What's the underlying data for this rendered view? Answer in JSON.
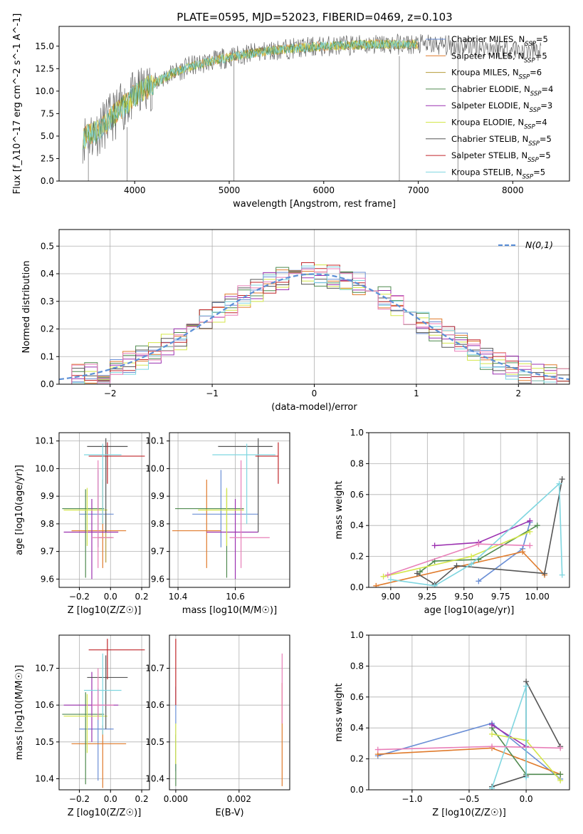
{
  "figure_title": "PLATE=0595, MJD=52023, FIBERID=0469, z=0.103",
  "colors": {
    "Chabrier MILES": "#6b8fd6",
    "Salpeter MILES": "#e07b2c",
    "Kroupa MILES": "#b59b3a",
    "Chabrier ELODIE": "#4f8a4f",
    "Salpeter ELODIE": "#9b30b0",
    "Kroupa ELODIE": "#d4e64a",
    "Chabrier STELIB": "#555555",
    "Salpeter STELIB": "#c0262a",
    "Kroupa STELIB": "#7fd6e0",
    "pink": "#e87fb8",
    "gaussian": "#5b8fd6"
  },
  "legend_names": [
    "Chabrier MILES",
    "Salpeter MILES",
    "Kroupa MILES",
    "Chabrier ELODIE",
    "Salpeter ELODIE",
    "Kroupa ELODIE",
    "Chabrier STELIB",
    "Salpeter STELIB",
    "Kroupa STELIB"
  ],
  "legend_nssp": [
    "5",
    "5",
    "6",
    "4",
    "3",
    "4",
    "5",
    "5",
    "5"
  ],
  "chart_data": [
    {
      "id": "spectrum",
      "type": "line",
      "xlabel": "wavelength [Angstrom, rest frame]",
      "ylabel": "Flux [f_λ10^-17 erg cm^-2 s^-1 A^-1]",
      "xlim": [
        3200,
        8600
      ],
      "ylim": [
        0,
        17.2
      ],
      "xticks": [
        4000,
        5000,
        6000,
        7000,
        8000
      ],
      "yticks": [
        0.0,
        2.5,
        5.0,
        7.5,
        10.0,
        12.5,
        15.0
      ],
      "legend": "upper right",
      "continuum": {
        "x": [
          3450,
          3600,
          3800,
          4000,
          4200,
          4400,
          4600,
          4800,
          5000,
          5300,
          5600,
          6000,
          6500,
          7000,
          7500,
          8000,
          8300
        ],
        "y": [
          4.8,
          5.5,
          7.5,
          9.5,
          10.8,
          12.0,
          12.8,
          13.3,
          13.8,
          14.3,
          14.7,
          15.0,
          15.2,
          15.2,
          15.0,
          14.7,
          14.4
        ]
      },
      "spikes": [
        {
          "x": 3510,
          "y0": 0,
          "y1": 3.6
        },
        {
          "x": 3920,
          "y0": 0,
          "y1": 6.0
        },
        {
          "x": 5050,
          "y0": 0,
          "y1": 14.0
        },
        {
          "x": 6800,
          "y0": 0,
          "y1": 13.9
        },
        {
          "x": 7420,
          "y0": 0,
          "y1": 14.6
        }
      ]
    },
    {
      "id": "residuals",
      "type": "histogram",
      "xlabel": "(data-model)/error",
      "ylabel": "Normed distribution",
      "xlim": [
        -2.5,
        2.5
      ],
      "ylim": [
        0,
        0.56
      ],
      "xticks": [
        -2,
        -1,
        0,
        1,
        2
      ],
      "yticks": [
        0.0,
        0.1,
        0.2,
        0.3,
        0.4,
        0.5
      ],
      "bin_width": 0.125,
      "legend_label": "N(0,1)",
      "grid": true
    },
    {
      "id": "age_vs_Z",
      "type": "errorbar",
      "xlabel": "Z [log10(Z/Z☉)]",
      "ylabel": "age [log10(age/yr)]",
      "xlim": [
        -0.33,
        0.25
      ],
      "ylim": [
        9.57,
        10.13
      ],
      "xticks": [
        -0.2,
        0.0,
        0.2
      ],
      "yticks": [
        9.6,
        9.7,
        9.8,
        9.9,
        10.0,
        10.1
      ],
      "points": [
        {
          "model": "Chabrier MILES",
          "x": -0.08,
          "y": 9.835,
          "xerr": [
            0.12,
            0.1
          ],
          "yerr": [
            0.12,
            0.16
          ]
        },
        {
          "model": "Salpeter MILES",
          "x": -0.05,
          "y": 9.775,
          "xerr": [
            0.2,
            0.15
          ],
          "yerr": [
            0.135,
            0.185
          ]
        },
        {
          "model": "Kroupa MILES",
          "x": -0.03,
          "y": 9.75,
          "xerr": [
            0.05,
            0.04
          ],
          "yerr": [
            0.09,
            0.09
          ]
        },
        {
          "model": "Chabrier ELODIE",
          "x": -0.16,
          "y": 9.855,
          "xerr": [
            0.15,
            0.12
          ],
          "yerr": [
            0.25,
            0.07
          ]
        },
        {
          "model": "Salpeter ELODIE",
          "x": -0.12,
          "y": 9.77,
          "xerr": [
            0.18,
            0.17
          ],
          "yerr": [
            0.17,
            0.12
          ]
        },
        {
          "model": "Kroupa ELODIE",
          "x": -0.15,
          "y": 9.85,
          "xerr": [
            0.15,
            0.13
          ],
          "yerr": [
            0.13,
            0.08
          ]
        },
        {
          "model": "Chabrier STELIB",
          "x": -0.03,
          "y": 10.08,
          "xerr": [
            0.12,
            0.14
          ],
          "yerr": [
            0.31,
            0.03
          ]
        },
        {
          "model": "Salpeter STELIB",
          "x": -0.02,
          "y": 10.045,
          "xerr": [
            0.12,
            0.24
          ],
          "yerr": [
            0.1,
            0.05
          ]
        },
        {
          "model": "Kroupa STELIB",
          "x": -0.05,
          "y": 10.05,
          "xerr": [
            0.12,
            0.12
          ],
          "yerr": [
            0.25,
            0.04
          ]
        },
        {
          "model": "pink",
          "x": -0.08,
          "y": 9.75,
          "xerr": [
            0.04,
            0.1
          ],
          "yerr": [
            0.11,
            0.28
          ]
        }
      ]
    },
    {
      "id": "age_vs_mass",
      "type": "errorbar",
      "xlabel": "mass [log10(M/M☉)]",
      "ylabel": "",
      "xlim": [
        10.37,
        10.79
      ],
      "ylim": [
        9.57,
        10.13
      ],
      "xticks": [
        10.4,
        10.6
      ],
      "yticks": [
        9.6,
        9.7,
        9.8,
        9.9,
        10.0,
        10.1
      ],
      "points": [
        {
          "model": "Chabrier MILES",
          "x": 10.55,
          "y": 9.835,
          "xerr": [
            0.1,
            0.13
          ],
          "yerr": [
            0.12,
            0.16
          ]
        },
        {
          "model": "Salpeter MILES",
          "x": 10.5,
          "y": 9.775,
          "xerr": [
            0.12,
            0.05
          ],
          "yerr": [
            0.135,
            0.185
          ]
        },
        {
          "model": "Chabrier ELODIE",
          "x": 10.57,
          "y": 9.855,
          "xerr": [
            0.18,
            0.06
          ],
          "yerr": [
            0.25,
            0.07
          ]
        },
        {
          "model": "Salpeter ELODIE",
          "x": 10.6,
          "y": 9.77,
          "xerr": [
            0.1,
            0.08
          ],
          "yerr": [
            0.17,
            0.12
          ]
        },
        {
          "model": "Kroupa ELODIE",
          "x": 10.57,
          "y": 9.85,
          "xerr": [
            0.1,
            0.06
          ],
          "yerr": [
            0.13,
            0.08
          ]
        },
        {
          "model": "Chabrier STELIB",
          "x": 10.68,
          "y": 10.08,
          "xerr": [
            0.14,
            0.05
          ],
          "yerr": [
            0.31,
            0.03
          ]
        },
        {
          "model": "Salpeter STELIB",
          "x": 10.75,
          "y": 10.045,
          "xerr": [
            0.08,
            0.0
          ],
          "yerr": [
            0.1,
            0.05
          ]
        },
        {
          "model": "Kroupa STELIB",
          "x": 10.64,
          "y": 10.05,
          "xerr": [
            0.12,
            0.1
          ],
          "yerr": [
            0.25,
            0.04
          ]
        },
        {
          "model": "pink",
          "x": 10.62,
          "y": 9.75,
          "xerr": [
            0.04,
            0.1
          ],
          "yerr": [
            0.11,
            0.28
          ]
        }
      ]
    },
    {
      "id": "massweight_vs_age",
      "type": "line",
      "xlabel": "age [log10(age/yr)]",
      "ylabel": "mass weight",
      "xlim": [
        8.85,
        10.22
      ],
      "ylim": [
        0,
        1.0
      ],
      "xticks": [
        9.0,
        9.25,
        9.5,
        9.75,
        10.0
      ],
      "yticks": [
        0.0,
        0.2,
        0.4,
        0.6,
        0.8,
        1.0
      ],
      "series": [
        {
          "model": "Chabrier MILES",
          "x": [
            9.6,
            9.9,
            9.95
          ],
          "y": [
            0.04,
            0.25,
            0.42
          ]
        },
        {
          "model": "Salpeter MILES",
          "x": [
            8.9,
            9.9,
            10.05
          ],
          "y": [
            0.01,
            0.23,
            0.08
          ]
        },
        {
          "model": "Chabrier ELODIE",
          "x": [
            9.2,
            9.3,
            9.6,
            10.0
          ],
          "y": [
            0.1,
            0.17,
            0.18,
            0.4
          ]
        },
        {
          "model": "Salpeter ELODIE",
          "x": [
            9.3,
            9.6,
            9.95
          ],
          "y": [
            0.27,
            0.29,
            0.43
          ]
        },
        {
          "model": "Kroupa ELODIE",
          "x": [
            8.95,
            9.55,
            9.95
          ],
          "y": [
            0.07,
            0.2,
            0.36
          ]
        },
        {
          "model": "Chabrier STELIB",
          "x": [
            9.18,
            9.3,
            9.45,
            10.05,
            10.17
          ],
          "y": [
            0.09,
            0.02,
            0.14,
            0.09,
            0.7
          ]
        },
        {
          "model": "Kroupa STELIB",
          "x": [
            9.0,
            9.3,
            9.55,
            10.15,
            10.17
          ],
          "y": [
            0.05,
            0.01,
            0.15,
            0.67,
            0.08
          ]
        },
        {
          "model": "pink",
          "x": [
            8.98,
            9.6,
            9.95
          ],
          "y": [
            0.08,
            0.28,
            0.27
          ]
        }
      ]
    },
    {
      "id": "mass_vs_Z",
      "type": "errorbar",
      "xlabel": "Z [log10(Z/Z☉)]",
      "ylabel": "mass [log10(M/M☉)]",
      "xlim": [
        -0.33,
        0.25
      ],
      "ylim": [
        10.37,
        10.79
      ],
      "xticks": [
        -0.2,
        0.0,
        0.2
      ],
      "yticks": [
        10.4,
        10.5,
        10.6,
        10.7
      ],
      "points": [
        {
          "model": "Chabrier MILES",
          "x": -0.08,
          "y": 10.535,
          "xerr": [
            0.12,
            0.1
          ],
          "yerr": [
            0.14,
            0.11
          ]
        },
        {
          "model": "Salpeter MILES",
          "x": -0.05,
          "y": 10.495,
          "xerr": [
            0.2,
            0.15
          ],
          "yerr": [
            0.12,
            0.05
          ]
        },
        {
          "model": "Chabrier ELODIE",
          "x": -0.16,
          "y": 10.575,
          "xerr": [
            0.15,
            0.12
          ],
          "yerr": [
            0.19,
            0.06
          ]
        },
        {
          "model": "Salpeter ELODIE",
          "x": -0.12,
          "y": 10.6,
          "xerr": [
            0.18,
            0.17
          ],
          "yerr": [
            0.1,
            0.09
          ]
        },
        {
          "model": "Kroupa ELODIE",
          "x": -0.15,
          "y": 10.57,
          "xerr": [
            0.15,
            0.13
          ],
          "yerr": [
            0.1,
            0.06
          ]
        },
        {
          "model": "Chabrier STELIB",
          "x": -0.03,
          "y": 10.675,
          "xerr": [
            0.12,
            0.14
          ],
          "yerr": [
            0.14,
            0.06
          ]
        },
        {
          "model": "Salpeter STELIB",
          "x": -0.02,
          "y": 10.75,
          "xerr": [
            0.12,
            0.24
          ],
          "yerr": [
            0.08,
            0.03
          ]
        },
        {
          "model": "Kroupa STELIB",
          "x": -0.05,
          "y": 10.64,
          "xerr": [
            0.12,
            0.12
          ],
          "yerr": [
            0.12,
            0.1
          ]
        },
        {
          "model": "pink",
          "x": -0.08,
          "y": 10.6,
          "xerr": [
            0.04,
            0.1
          ],
          "yerr": [
            0.04,
            0.1
          ]
        }
      ]
    },
    {
      "id": "mass_vs_EBV",
      "type": "errorbar",
      "xlabel": "E(B-V)",
      "ylabel": "",
      "xlim": [
        -0.0002,
        0.0036
      ],
      "ylim": [
        10.37,
        10.79
      ],
      "xticks": [
        0.0,
        0.002
      ],
      "yticks": [
        10.4,
        10.5,
        10.6,
        10.7
      ],
      "bars": [
        {
          "model": "Chabrier MILES",
          "x": 0.0,
          "y0": 10.42,
          "y1": 10.65
        },
        {
          "model": "Chabrier ELODIE",
          "x": 0.0,
          "y0": 10.38,
          "y1": 10.52
        },
        {
          "model": "Kroupa ELODIE",
          "x": 0.0,
          "y0": 10.44,
          "y1": 10.55
        },
        {
          "model": "Salpeter STELIB",
          "x": 0.0,
          "y0": 10.6,
          "y1": 10.78
        },
        {
          "model": "Salpeter MILES",
          "x": 0.00336,
          "y0": 10.38,
          "y1": 10.66
        },
        {
          "model": "pink",
          "x": 0.00336,
          "y0": 10.55,
          "y1": 10.74
        }
      ]
    },
    {
      "id": "massweight_vs_Z",
      "type": "line",
      "xlabel": "Z [log10(Z/Z☉)]",
      "ylabel": "mass weight",
      "xlim": [
        -1.38,
        0.38
      ],
      "ylim": [
        0,
        1.0
      ],
      "xticks": [
        -1.0,
        -0.5,
        0.0
      ],
      "yticks": [
        0.0,
        0.2,
        0.4,
        0.6,
        0.8,
        1.0
      ],
      "series": [
        {
          "model": "Chabrier MILES",
          "x": [
            -1.3,
            -0.3,
            0.3
          ],
          "y": [
            0.22,
            0.43,
            0.07
          ]
        },
        {
          "model": "Salpeter MILES",
          "x": [
            -1.3,
            -0.3,
            0.3
          ],
          "y": [
            0.23,
            0.27,
            0.1
          ]
        },
        {
          "model": "Chabrier ELODIE",
          "x": [
            -0.3,
            0.0,
            0.3
          ],
          "y": [
            0.4,
            0.1,
            0.1
          ]
        },
        {
          "model": "Salpeter ELODIE",
          "x": [
            -0.3,
            0.0
          ],
          "y": [
            0.42,
            0.28
          ]
        },
        {
          "model": "Kroupa ELODIE",
          "x": [
            -0.3,
            0.0,
            0.3
          ],
          "y": [
            0.36,
            0.32,
            0.06
          ]
        },
        {
          "model": "Chabrier STELIB",
          "x": [
            -0.3,
            0.0,
            0.0,
            0.3
          ],
          "y": [
            0.02,
            0.09,
            0.7,
            0.28
          ]
        },
        {
          "model": "Kroupa STELIB",
          "x": [
            -0.3,
            0.0,
            0.0
          ],
          "y": [
            0.01,
            0.67,
            0.08
          ]
        },
        {
          "model": "pink",
          "x": [
            -1.3,
            -0.3,
            0.3
          ],
          "y": [
            0.26,
            0.28,
            0.27
          ]
        }
      ]
    }
  ]
}
